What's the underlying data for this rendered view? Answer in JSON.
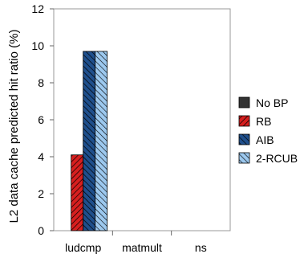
{
  "chart_data": {
    "type": "bar",
    "categories": [
      "ludcmp",
      "matmult",
      "ns"
    ],
    "series": [
      {
        "name": "No BP",
        "values": [
          0,
          0,
          0
        ],
        "color": "#333333",
        "pattern": "solid"
      },
      {
        "name": "RB",
        "values": [
          4.1,
          0,
          0
        ],
        "color": "#d61f1f",
        "pattern": "diagonal-lines"
      },
      {
        "name": "AIB",
        "values": [
          9.7,
          0,
          0
        ],
        "color": "#1f4f8c",
        "pattern": "diagonal-lines"
      },
      {
        "name": "2-RCUB",
        "values": [
          9.7,
          0,
          0
        ],
        "color": "#9cc8ee",
        "pattern": "diagonal-lines"
      }
    ],
    "xlabel": "",
    "ylabel": "L2 data cache predicted hit ratio (%)",
    "ylim": [
      0,
      12
    ],
    "yticks": [
      0,
      2,
      4,
      6,
      8,
      10,
      12
    ],
    "grid": false,
    "legend_position": "right"
  }
}
